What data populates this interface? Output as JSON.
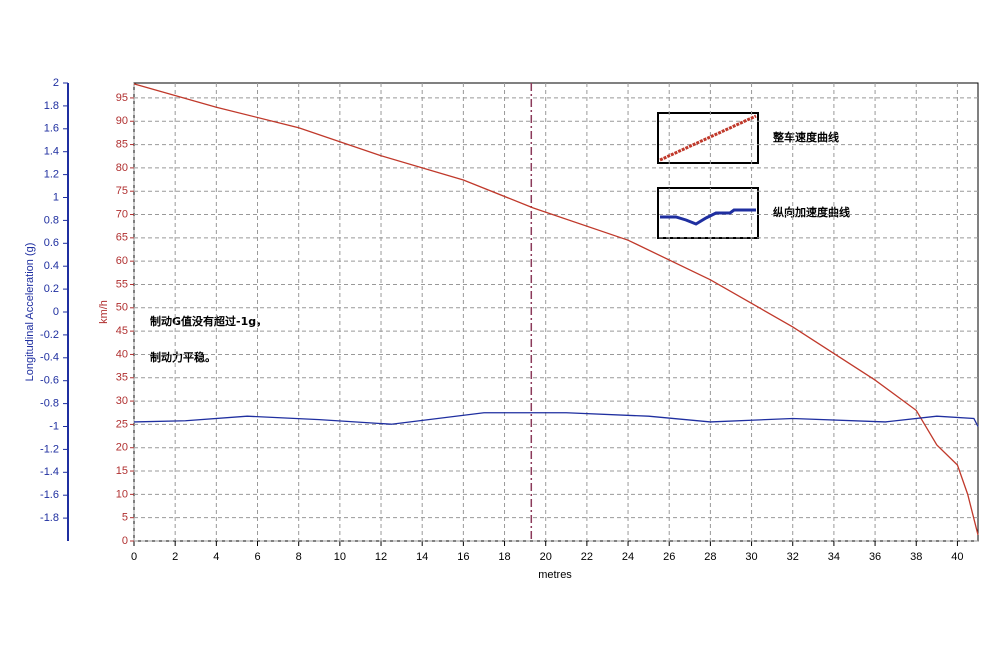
{
  "chart_data": {
    "type": "line",
    "x_label": "metres",
    "y_label": "Longitudinal Acceleration (g)",
    "y2_label": "km/h",
    "annotation": [
      "制动G值没有超过-1g，",
      "制动力平稳。"
    ],
    "xlim": [
      0,
      41
    ],
    "xticks": [
      0,
      2,
      4,
      6,
      8,
      10,
      12,
      14,
      16,
      18,
      20,
      22,
      24,
      26,
      28,
      30,
      32,
      34,
      36,
      38,
      40
    ],
    "ylim": [
      -2,
      2
    ],
    "yticks": [
      2,
      1.8,
      1.6,
      1.4,
      1.2,
      1,
      0.8,
      0.6,
      0.4,
      0.2,
      0,
      -0.2,
      -0.4,
      -0.6,
      -0.8,
      -1,
      -1.2,
      -1.4,
      -1.6,
      -1.8
    ],
    "y2lim": [
      0,
      98.2
    ],
    "y2ticks": [
      0,
      5,
      10,
      15,
      20,
      25,
      30,
      35,
      40,
      45,
      50,
      55,
      60,
      65,
      70,
      75,
      80,
      85,
      90,
      95
    ],
    "grid": true,
    "cursor_x": 19.3,
    "series": [
      {
        "name": "整车速度曲线",
        "color": "#c0392b",
        "axis": "y2",
        "x": [
          0,
          4,
          8,
          12,
          16,
          19.4,
          24,
          28,
          32,
          36,
          38,
          39,
          40,
          40.5,
          41
        ],
        "values": [
          98,
          93,
          88.6,
          82.6,
          77.4,
          71.4,
          64.5,
          56,
          45.9,
          34.5,
          28,
          20.6,
          16.3,
          10,
          1.3
        ]
      },
      {
        "name": "纵向加速度曲线",
        "color": "#1f2fa0",
        "x": [
          0,
          2.5,
          5.5,
          9,
          12.5,
          17,
          21,
          25,
          28,
          32,
          36.5,
          39,
          40.8,
          41
        ],
        "values": [
          -0.96,
          -0.95,
          -0.91,
          -0.94,
          -0.98,
          -0.88,
          -0.88,
          -0.91,
          -0.96,
          -0.93,
          -0.96,
          -0.91,
          -0.93,
          -1.0
        ]
      }
    ]
  }
}
